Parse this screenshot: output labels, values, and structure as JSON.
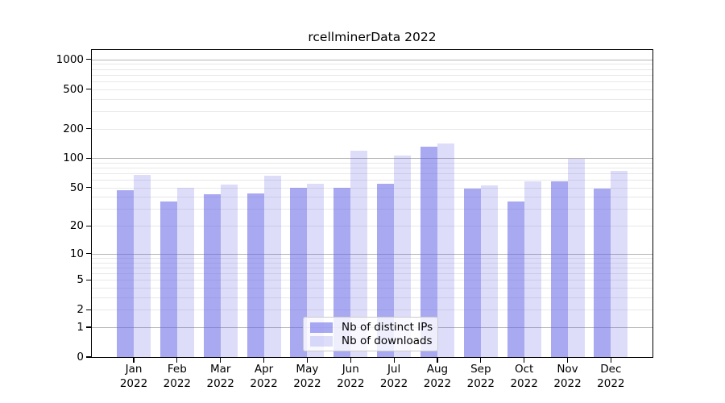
{
  "title": "rcellminerData 2022",
  "legend": {
    "items": [
      {
        "key": "ips",
        "label": "Nb of distinct IPs"
      },
      {
        "key": "downloads",
        "label": "Nb of downloads"
      }
    ]
  },
  "colors": {
    "ips": "rgba(99,99,231,0.55)",
    "downloads": "rgba(99,99,231,0.22)",
    "major_gridline": "#b3b3b3",
    "minor_gridline": "#e8e8e8",
    "axis": "#000000",
    "background": "#ffffff"
  },
  "chart_data": {
    "type": "bar",
    "title": "rcellminerData 2022",
    "categories": [
      "Jan 2022",
      "Feb 2022",
      "Mar 2022",
      "Apr 2022",
      "May 2022",
      "Jun 2022",
      "Jul 2022",
      "Aug 2022",
      "Sep 2022",
      "Oct 2022",
      "Nov 2022",
      "Dec 2022"
    ],
    "series": [
      {
        "name": "Nb of distinct IPs",
        "values": [
          47,
          36,
          43,
          44,
          50,
          50,
          55,
          130,
          49,
          36,
          58,
          49
        ]
      },
      {
        "name": "Nb of downloads",
        "values": [
          68,
          50,
          54,
          66,
          55,
          120,
          106,
          142,
          53,
          58,
          99,
          74
        ]
      }
    ],
    "xlabel": "",
    "ylabel": "",
    "y_axis": {
      "scale": "log10(value+1)",
      "tick_labels": [
        0,
        1,
        2,
        5,
        10,
        20,
        50,
        100,
        200,
        500,
        1000
      ],
      "range": [
        0,
        1000
      ]
    },
    "grid": "on",
    "legend_position": "inside-bottom-center"
  }
}
